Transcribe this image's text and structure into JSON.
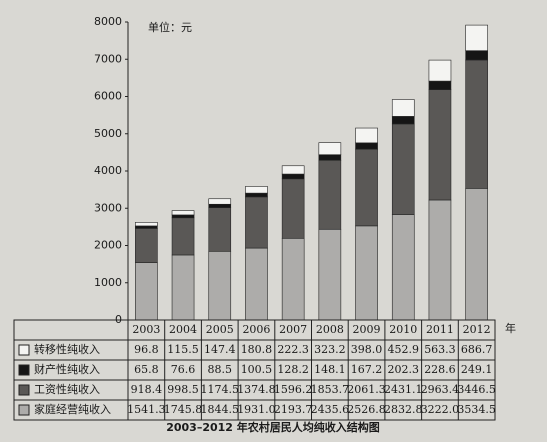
{
  "chart_data": {
    "type": "stacked_bar",
    "title": "2003–2012 年农村居民人均纯收入结构图",
    "ylabel": "单位：元",
    "xlabel": "年",
    "categories": [
      "2003",
      "2004",
      "2005",
      "2006",
      "2007",
      "2008",
      "2009",
      "2010",
      "2011",
      "2012"
    ],
    "ylim": [
      0,
      8000
    ],
    "yticks": [
      0,
      1000,
      2000,
      3000,
      4000,
      5000,
      6000,
      7000,
      8000
    ],
    "series": [
      {
        "name": "转移性纯收入",
        "color": "#f4f4f2",
        "values": [
          96.8,
          115.5,
          147.4,
          180.8,
          222.3,
          323.2,
          398.0,
          452.9,
          563.3,
          686.7
        ],
        "value_labels": [
          "96.8",
          "115.5",
          "147.4",
          "180.8",
          "222.3",
          "323.2",
          "398.0",
          "452.9",
          "563.3",
          "686.7"
        ]
      },
      {
        "name": "财产性纯收入",
        "color": "#151515",
        "values": [
          65.8,
          76.6,
          88.5,
          100.5,
          128.2,
          148.1,
          167.2,
          202.3,
          228.6,
          249.1
        ],
        "value_labels": [
          "65.8",
          "76.6",
          "88.5",
          "100.5",
          "128.2",
          "148.1",
          "167.2",
          "202.3",
          "228.6",
          "249.1"
        ]
      },
      {
        "name": "工资性纯收入",
        "color": "#5a5856",
        "values": [
          918.4,
          998.5,
          1174.5,
          1374.8,
          1596.2,
          1853.7,
          2061.3,
          2431.1,
          2963.4,
          3446.5
        ],
        "value_labels": [
          "918.4",
          "998.5",
          "1174.5",
          "1374.8",
          "1596.2",
          "1853.7",
          "2061.3",
          "2431.1",
          "2963.4",
          "3446.5"
        ]
      },
      {
        "name": "家庭经营纯收入",
        "color": "#adacaa",
        "values": [
          1541.3,
          1745.8,
          1844.5,
          1931.0,
          2193.7,
          2435.6,
          2526.8,
          2832.8,
          3222.0,
          3534.5
        ],
        "value_labels": [
          "1541.3",
          "1745.8",
          "1844.5",
          "1931.0",
          "2193.7",
          "2435.6",
          "2526.8",
          "2832.8",
          "3222.0",
          "3534.5"
        ]
      }
    ]
  }
}
